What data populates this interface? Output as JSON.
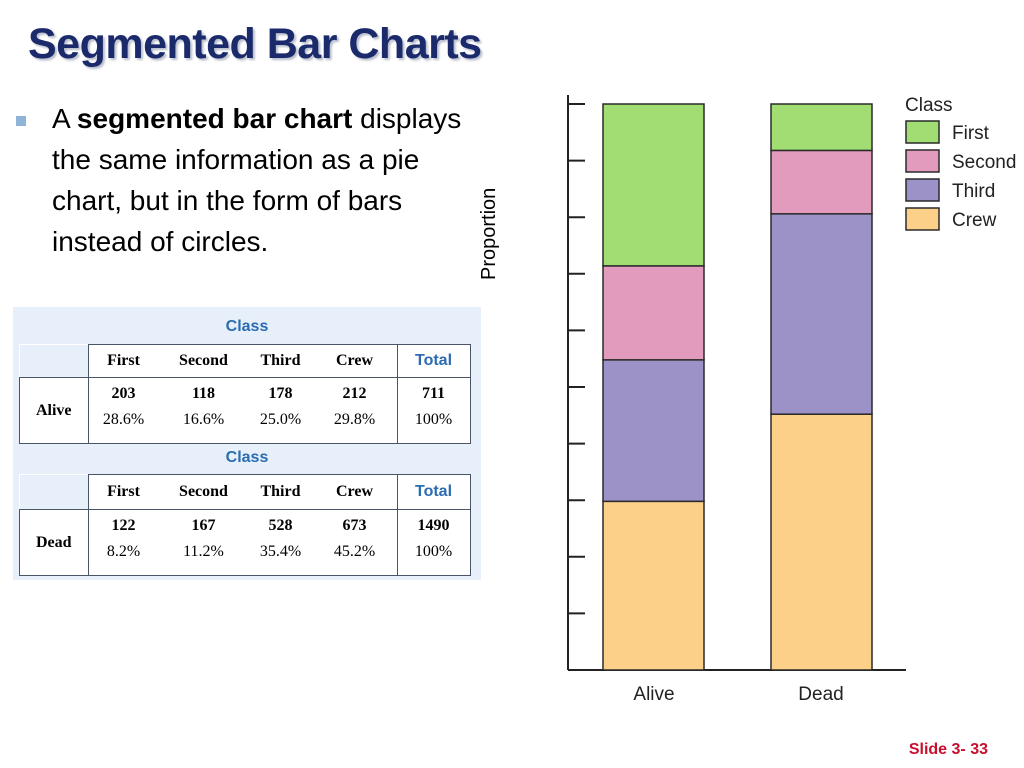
{
  "slide": {
    "title": "Segmented Bar Charts",
    "bullet_pre": "A ",
    "bullet_bold": "segmented bar chart",
    "bullet_rest": " displays the same information as a pie chart, but in the form of bars instead of circles.",
    "slide_number": "Slide 3- 33"
  },
  "tables": [
    {
      "class_label": "Class",
      "headers": [
        "First",
        "Second",
        "Third",
        "Crew",
        "Total"
      ],
      "row_label": "Alive",
      "counts": [
        "203",
        "118",
        "178",
        "212",
        "711"
      ],
      "percents": [
        "28.6%",
        "16.6%",
        "25.0%",
        "29.8%",
        "100%"
      ]
    },
    {
      "class_label": "Class",
      "headers": [
        "First",
        "Second",
        "Third",
        "Crew",
        "Total"
      ],
      "row_label": "Dead",
      "counts": [
        "122",
        "167",
        "528",
        "673",
        "1490"
      ],
      "percents": [
        "8.2%",
        "11.2%",
        "35.4%",
        "45.2%",
        "100%"
      ]
    }
  ],
  "chart_data": {
    "type": "bar",
    "stacked": true,
    "ylabel": "Proportion",
    "xlabel": "",
    "categories": [
      "Alive",
      "Dead"
    ],
    "ylim": [
      0,
      1
    ],
    "series": [
      {
        "name": "Crew",
        "values": [
          0.298,
          0.452
        ],
        "color": "#fdd08a"
      },
      {
        "name": "Third",
        "values": [
          0.25,
          0.354
        ],
        "color": "#9c92c8"
      },
      {
        "name": "Second",
        "values": [
          0.166,
          0.112
        ],
        "color": "#e29bbd"
      },
      {
        "name": "First",
        "values": [
          0.286,
          0.082
        ],
        "color": "#a2dd74"
      }
    ],
    "legend": {
      "title": "Class",
      "entries": [
        "First",
        "Second",
        "Third",
        "Crew"
      ],
      "position": "right"
    },
    "y_tick_count": 10
  }
}
